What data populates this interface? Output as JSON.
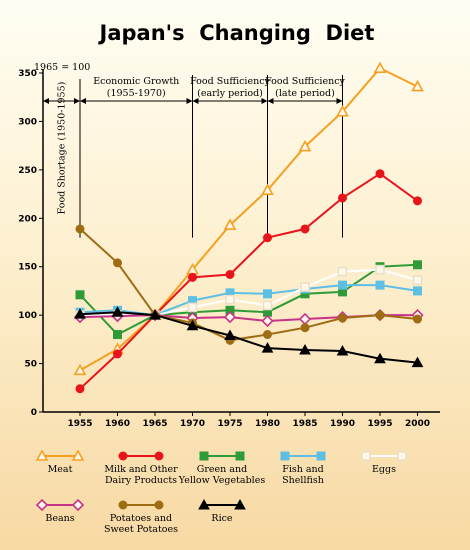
{
  "chart_data": {
    "type": "line",
    "title": "Japan's  Changing  Diet",
    "base_note": "1965 = 100",
    "x": [
      1955,
      1960,
      1965,
      1970,
      1975,
      1980,
      1985,
      1990,
      1995,
      2000
    ],
    "ylim": [
      0,
      350
    ],
    "yticks": [
      0,
      50,
      100,
      150,
      200,
      250,
      300,
      350
    ],
    "grid": false,
    "legend_position": "bottom",
    "periods": [
      {
        "name": "food-shortage",
        "label": "Food Shortage (1950-1955)",
        "from": 1950,
        "to": 1955,
        "vertical": true
      },
      {
        "name": "economic-growth",
        "lines": [
          "Economic Growth",
          "(1955-1970)"
        ],
        "from": 1955,
        "to": 1970
      },
      {
        "name": "food-sufficiency-early",
        "lines": [
          "Food Sufficiency",
          "(early period)"
        ],
        "from": 1970,
        "to": 1980
      },
      {
        "name": "food-sufficiency-late",
        "lines": [
          "Food Sufficiency",
          "(late period)"
        ],
        "from": 1980,
        "to": 1990
      }
    ],
    "series": [
      {
        "key": "meat",
        "lines": [
          "Meat"
        ],
        "color": "#f5a020",
        "marker": "triangle",
        "filled": false,
        "values": [
          43,
          65,
          100,
          147,
          193,
          229,
          274,
          310,
          355,
          336
        ]
      },
      {
        "key": "milk",
        "lines": [
          "Milk and Other",
          "Dairy Products"
        ],
        "color": "#e8141b",
        "marker": "circle",
        "filled": true,
        "values": [
          24,
          60,
          100,
          139,
          142,
          180,
          189,
          221,
          246,
          218
        ]
      },
      {
        "key": "green-yellow-veg",
        "lines": [
          "Green and",
          "Yellow Vegetables"
        ],
        "color": "#2e9b38",
        "marker": "square",
        "filled": true,
        "values": [
          121,
          80,
          100,
          103,
          105,
          103,
          122,
          124,
          150,
          152
        ]
      },
      {
        "key": "fish",
        "lines": [
          "Fish and",
          "Shellfish"
        ],
        "color": "#5dbfe3",
        "marker": "square",
        "filled": true,
        "values": [
          103,
          105,
          100,
          115,
          123,
          122,
          127,
          131,
          131,
          125
        ]
      },
      {
        "key": "eggs",
        "lines": [
          "Eggs"
        ],
        "color": "#ffffff",
        "marker": "square",
        "filled": false,
        "values": [
          100,
          100,
          100,
          108,
          116,
          110,
          129,
          145,
          147,
          136
        ]
      },
      {
        "key": "beans",
        "lines": [
          "Beans"
        ],
        "color": "#c8338a",
        "marker": "diamond",
        "filled": false,
        "values": [
          98,
          99,
          100,
          97,
          98,
          94,
          96,
          98,
          100,
          100
        ]
      },
      {
        "key": "potatoes",
        "lines": [
          "Potatoes and",
          "Sweet Potatoes"
        ],
        "color": "#9e6c12",
        "marker": "circle",
        "filled": true,
        "values": [
          189,
          154,
          100,
          92,
          74,
          80,
          87,
          97,
          100,
          96
        ]
      },
      {
        "key": "rice",
        "lines": [
          "Rice"
        ],
        "color": "#000000",
        "marker": "triangle",
        "filled": true,
        "values": [
          101,
          103,
          100,
          89,
          79,
          66,
          64,
          63,
          55,
          51
        ]
      }
    ]
  }
}
